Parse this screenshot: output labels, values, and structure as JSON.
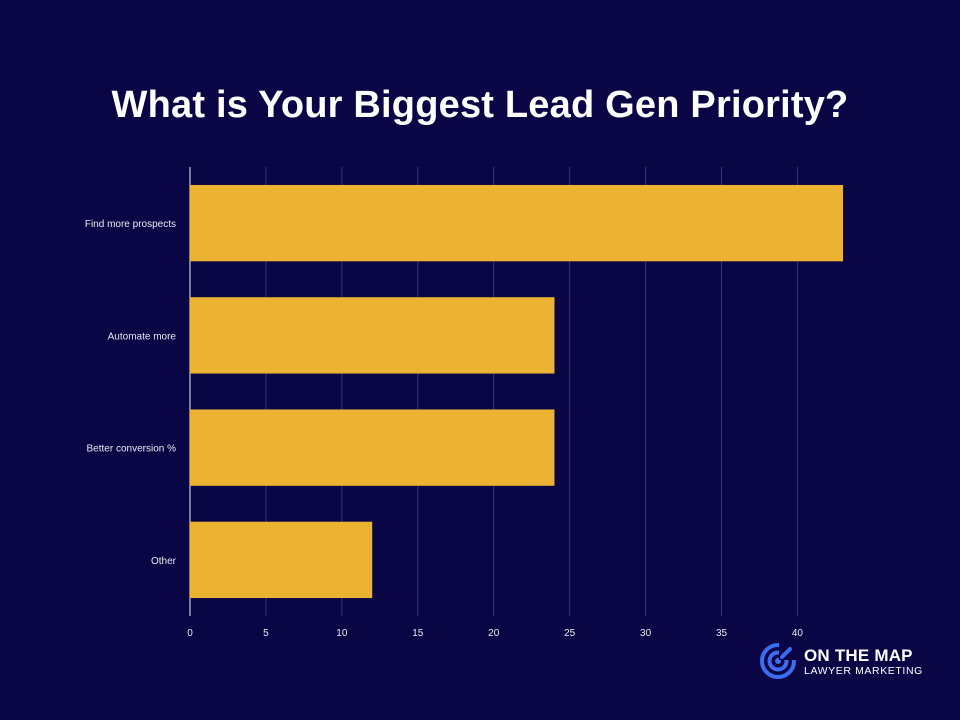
{
  "colors": {
    "background": "#0a0545",
    "bar": "#ecb232",
    "grid": "#3a3670",
    "text": "#ffffff"
  },
  "chart_data": {
    "type": "bar",
    "orientation": "horizontal",
    "title": "What is Your Biggest Lead Gen Priority?",
    "categories": [
      "Find more prospects",
      "Automate more",
      "Better conversion %",
      "Other"
    ],
    "values": [
      43,
      24,
      24,
      12
    ],
    "xlim": [
      0,
      43
    ],
    "xticks": [
      0,
      5,
      10,
      15,
      20,
      25,
      30,
      35,
      40
    ],
    "xlabel": "",
    "ylabel": "",
    "grid": true,
    "legend": "none"
  },
  "logo": {
    "name": "ON THE MAP",
    "tagline": "LAWYER MARKETING",
    "icon": "target-map-icon"
  }
}
